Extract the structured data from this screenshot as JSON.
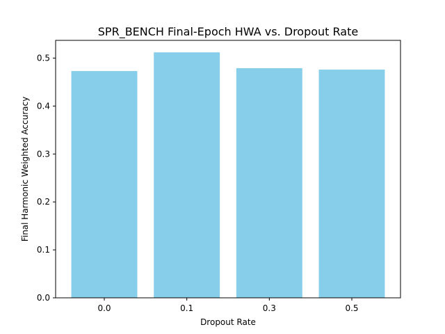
{
  "chart_data": {
    "type": "bar",
    "title": "SPR_BENCH Final-Epoch HWA vs. Dropout Rate",
    "xlabel": "Dropout Rate",
    "ylabel": "Final Harmonic Weighted Accuracy",
    "categories": [
      "0.0",
      "0.1",
      "0.3",
      "0.5"
    ],
    "values": [
      0.473,
      0.512,
      0.479,
      0.476
    ],
    "ylim": [
      0,
      0.537
    ],
    "yticks": [
      0.0,
      0.1,
      0.2,
      0.3,
      0.4,
      0.5
    ],
    "ytick_labels": [
      "0.0",
      "0.1",
      "0.2",
      "0.3",
      "0.4",
      "0.5"
    ],
    "bar_color": "#87ceeb",
    "grid": false,
    "legend": "none"
  }
}
